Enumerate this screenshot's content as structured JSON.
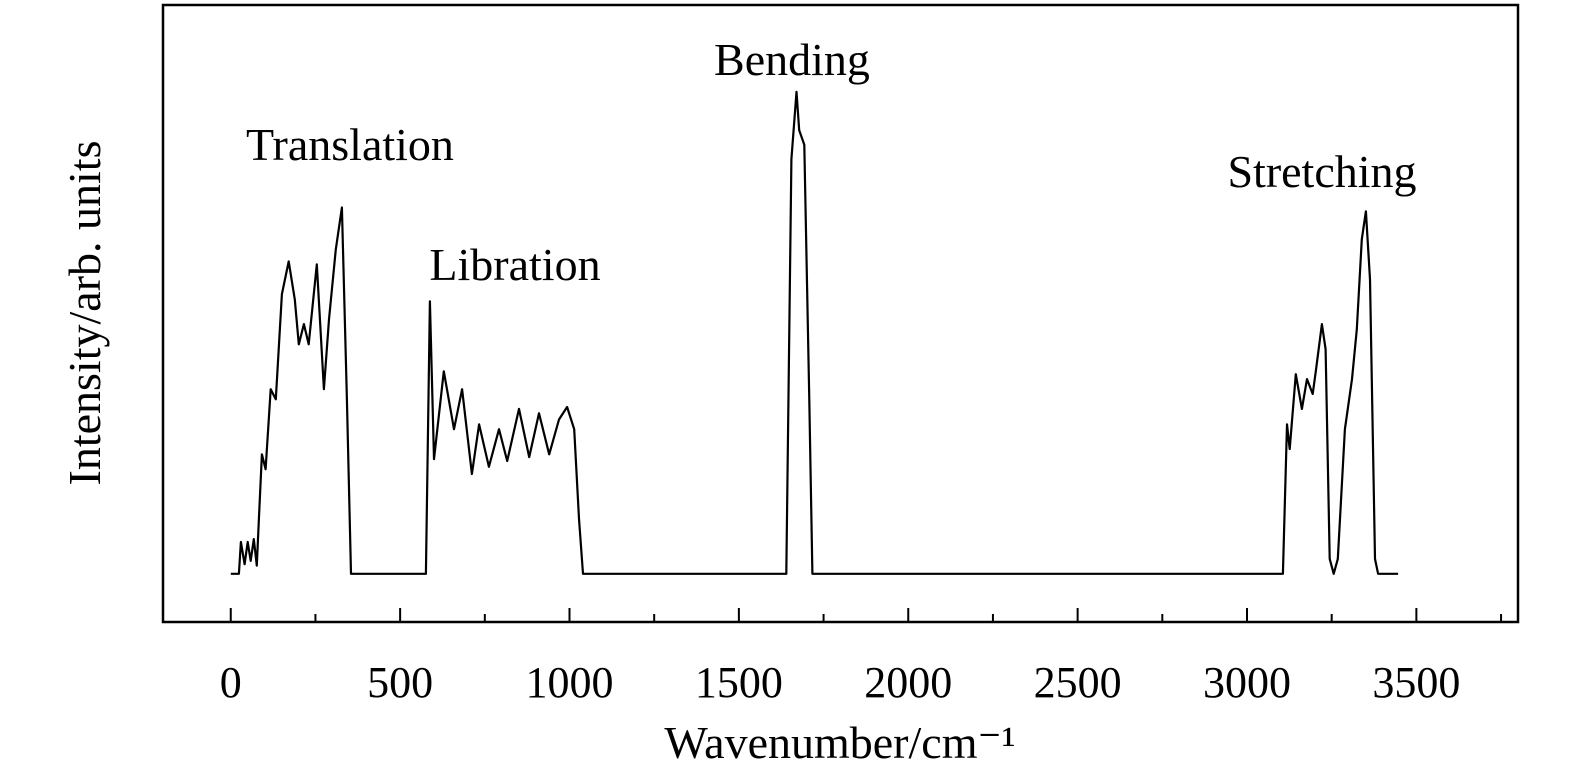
{
  "chart_data": {
    "type": "line",
    "x_label": "Wavenumber/cm⁻¹",
    "y_label": "Intensity/arb. units",
    "annotations": [
      "Translation",
      "Libration",
      "Bending",
      "Stretching"
    ],
    "xlim": [
      -200,
      3800
    ],
    "xticks": [
      0,
      500,
      1000,
      1500,
      2000,
      2500,
      3000,
      3500
    ],
    "xticks_minor": [
      250,
      750,
      1250,
      1750,
      2250,
      2750,
      3250,
      3750
    ],
    "ylim": [
      -10,
      118
    ],
    "color": "#000000",
    "x": [
      0,
      24,
      30,
      41,
      50,
      59,
      68,
      77,
      83,
      92,
      103,
      118,
      133,
      151,
      171,
      189,
      201,
      216,
      230,
      254,
      275,
      290,
      310,
      328,
      343,
      355,
      576,
      588,
      600,
      629,
      659,
      683,
      712,
      733,
      762,
      792,
      816,
      851,
      881,
      910,
      940,
      969,
      993,
      1014,
      1028,
      1040,
      1640,
      1655,
      1670,
      1678,
      1693,
      1708,
      1717,
      3106,
      3118,
      3126,
      3144,
      3162,
      3177,
      3194,
      3203,
      3221,
      3232,
      3244,
      3256,
      3268,
      3289,
      3310,
      3324,
      3339,
      3351,
      3363,
      3378,
      3387,
      3446
    ],
    "values": [
      0,
      0,
      6.6,
      2,
      6.6,
      2.7,
      7.2,
      1.7,
      11.4,
      24.8,
      21.7,
      38.3,
      36.2,
      58,
      64.8,
      56.9,
      47.6,
      51.8,
      47.6,
      64.2,
      38.3,
      52.8,
      67.3,
      76,
      36.2,
      0,
      0,
      56.5,
      23.8,
      42,
      30,
      38.3,
      20.7,
      31,
      22.2,
      30,
      23.4,
      34.2,
      24.2,
      33.3,
      24.8,
      32,
      34.6,
      30,
      11.4,
      0,
      0,
      86,
      100,
      92,
      89,
      36,
      0,
      0,
      31,
      25.9,
      41.4,
      34.2,
      40.4,
      37.3,
      42,
      51.8,
      46.6,
      3.1,
      0,
      3.1,
      30,
      40.4,
      50.7,
      69.4,
      75.2,
      61.1,
      3.1,
      0,
      0
    ]
  }
}
